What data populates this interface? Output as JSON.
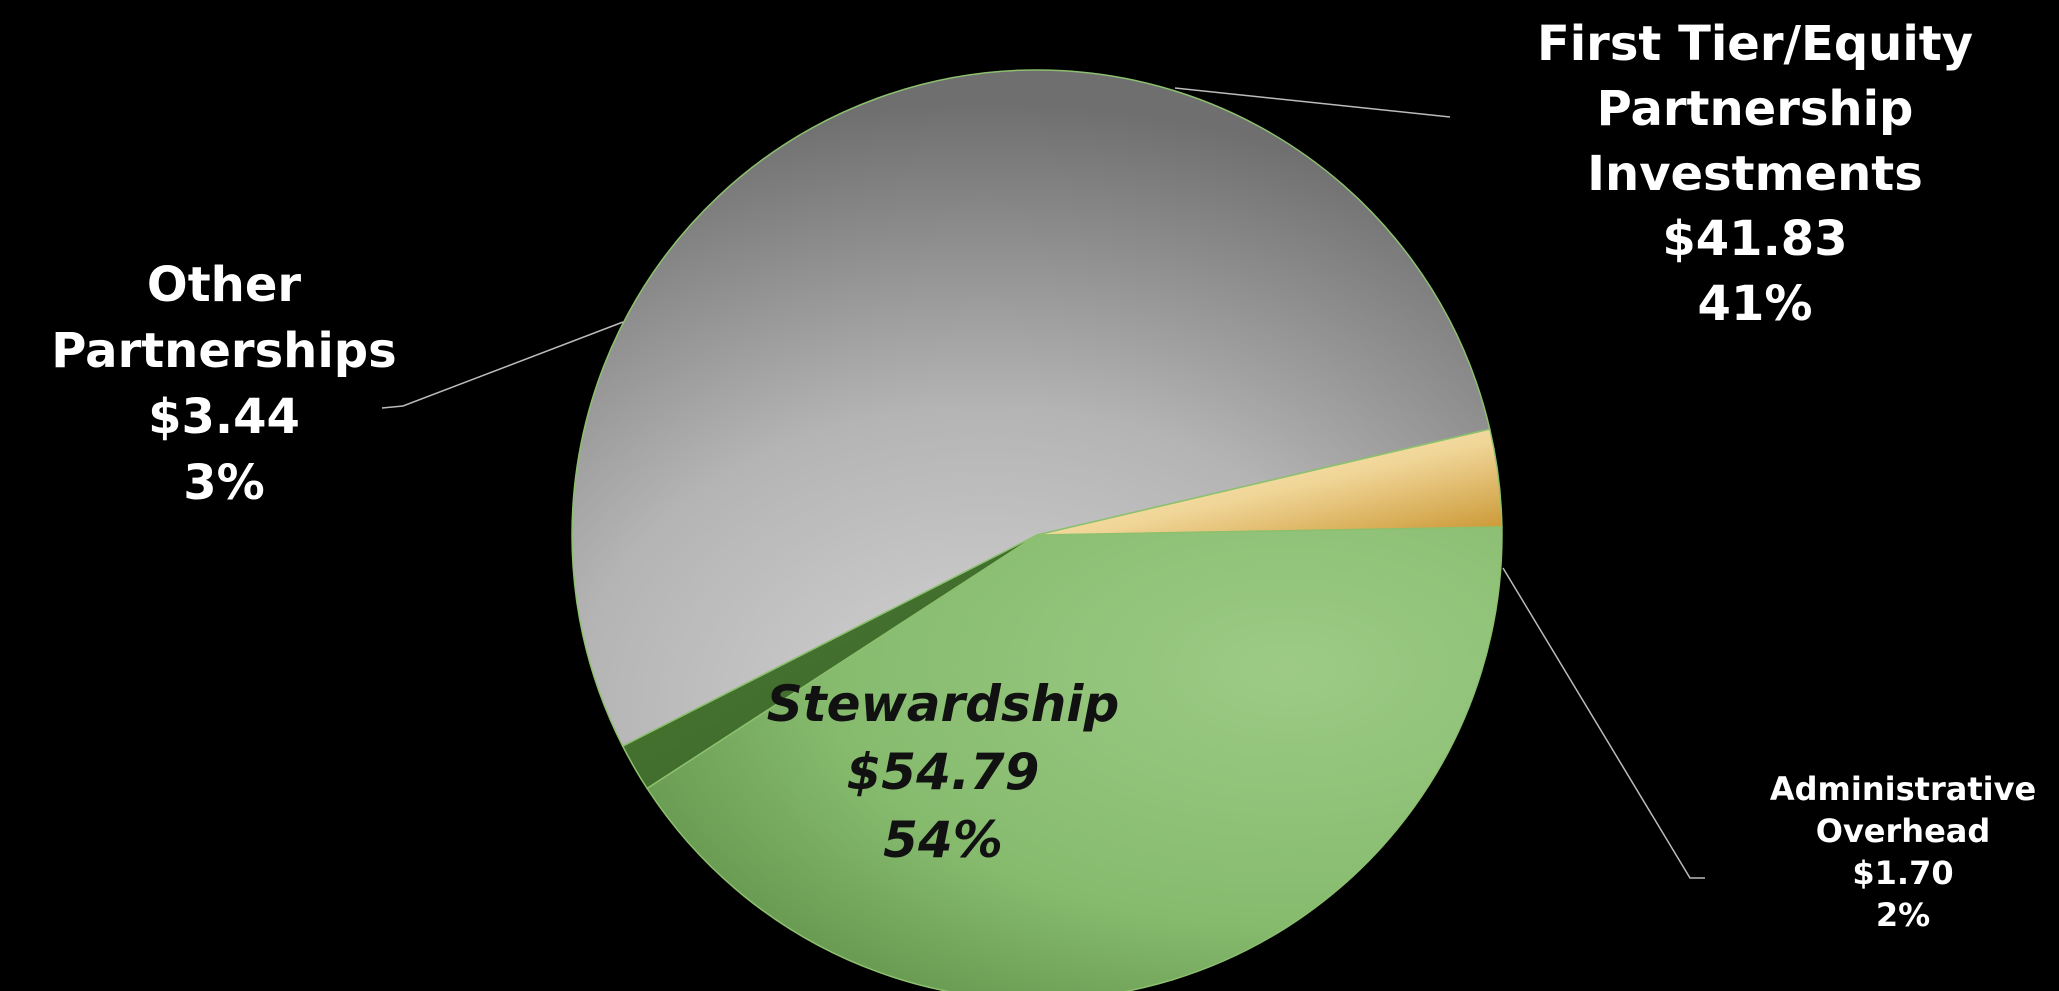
{
  "chart_data": {
    "type": "pie",
    "slices": [
      {
        "label_lines": [
          "First Tier/Equity",
          "Partnership",
          "Investments"
        ],
        "value": 41.83,
        "value_label": "$41.83",
        "percent_label": "41%",
        "color": "#7fb069"
      },
      {
        "label_lines": [
          "Administrative",
          "Overhead"
        ],
        "value": 1.7,
        "value_label": "$1.70",
        "percent_label": "2%",
        "color": "#4c7a35"
      },
      {
        "label_lines": [
          "Stewardship"
        ],
        "value": 54.79,
        "value_label": "$54.79",
        "percent_label": "54%",
        "color": "#a8a8a8"
      },
      {
        "label_lines": [
          "Other",
          "Partnerships"
        ],
        "value": 3.44,
        "value_label": "$3.44",
        "percent_label": "3%",
        "color": "#e8c57a"
      }
    ]
  }
}
